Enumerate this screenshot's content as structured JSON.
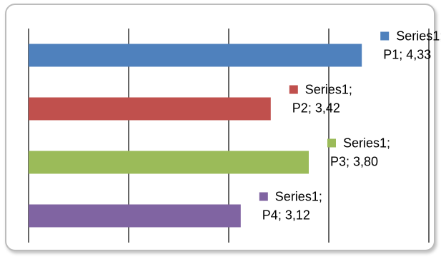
{
  "chart_data": {
    "type": "bar",
    "orientation": "horizontal",
    "categories": [
      "P1",
      "P2",
      "P3",
      "P4"
    ],
    "series": [
      {
        "name": "Series1",
        "values": [
          4.33,
          3.42,
          3.8,
          3.12
        ]
      }
    ],
    "point_colors": [
      "#4f81bd",
      "#c0504d",
      "#9bbb59",
      "#8064a2"
    ],
    "data_labels": [
      {
        "line1": "Series1;",
        "line2": "P1; 4,33"
      },
      {
        "line1": "Series1;",
        "line2": "P2; 3,42"
      },
      {
        "line1": "Series1;",
        "line2": "P3; 3,80"
      },
      {
        "line1": "Series1;",
        "line2": "P4; 3,12"
      }
    ],
    "xlim": [
      1,
      5
    ],
    "gridlines": "vertical",
    "legend": "none"
  }
}
